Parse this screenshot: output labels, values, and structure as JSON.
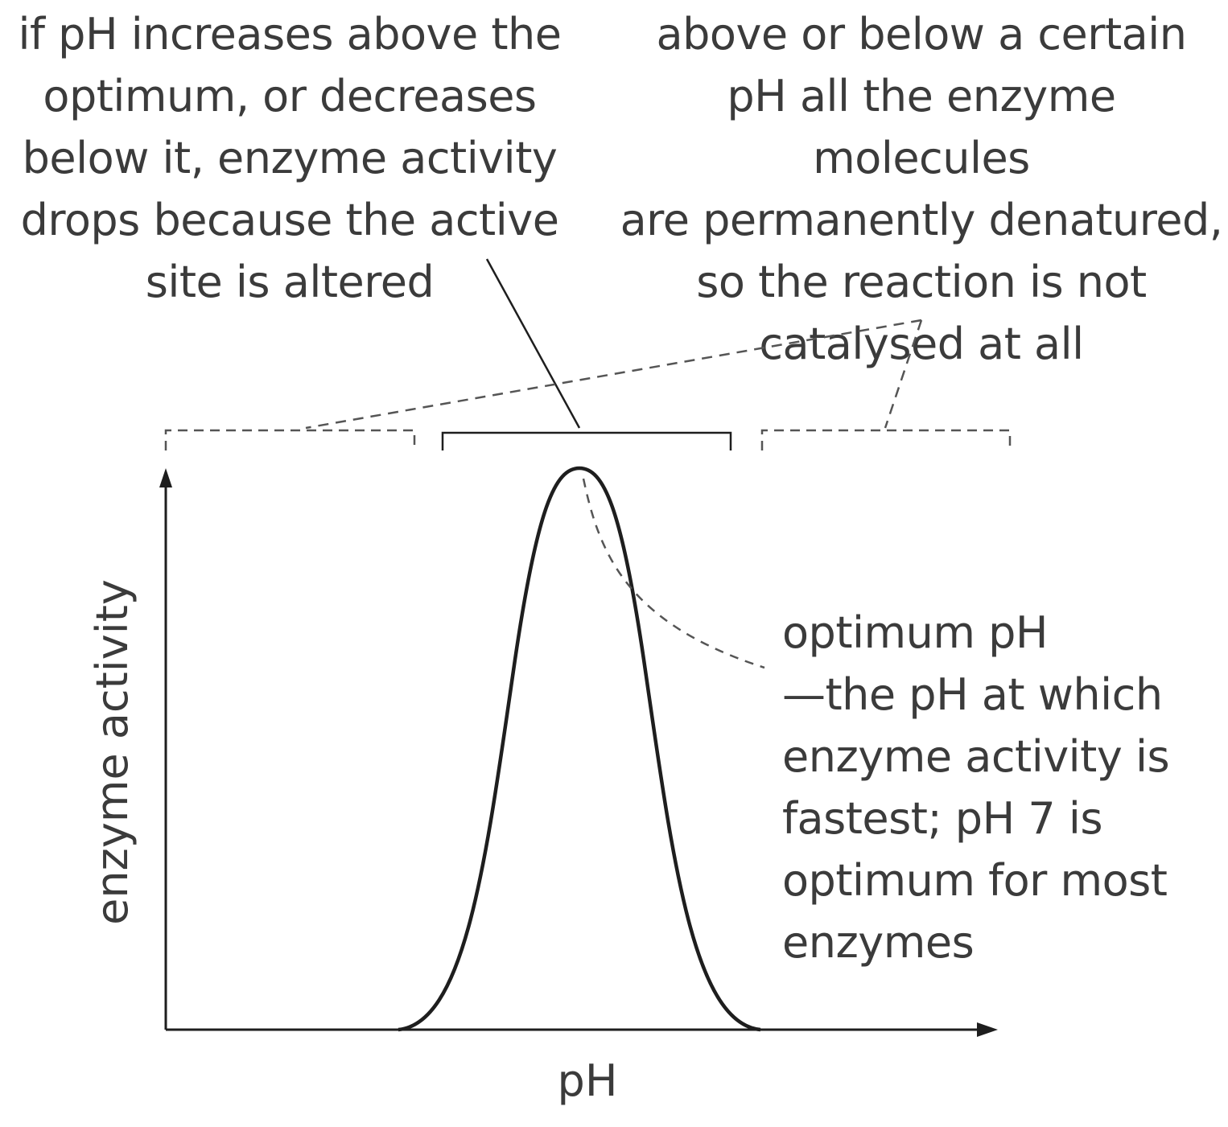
{
  "annotations": {
    "acidity_range": "if pH increases above the\noptimum, or decreases\nbelow it, enzyme activity\ndrops because the active\nsite is altered",
    "denature_range": "above or below a certain\npH all the enzyme molecules\nare permanently denatured,\nso the reaction is not\ncatalysed at all",
    "optimum": "optimum pH\n—the pH at which\nenzyme activity is\nfastest; pH 7 is\noptimum for most\nenzymes"
  },
  "axes": {
    "x_label": "pH",
    "y_label": "enzyme activity"
  },
  "colors": {
    "line": "#1e1e1e",
    "text": "#3b3b3b",
    "dashed": "#555555"
  }
}
